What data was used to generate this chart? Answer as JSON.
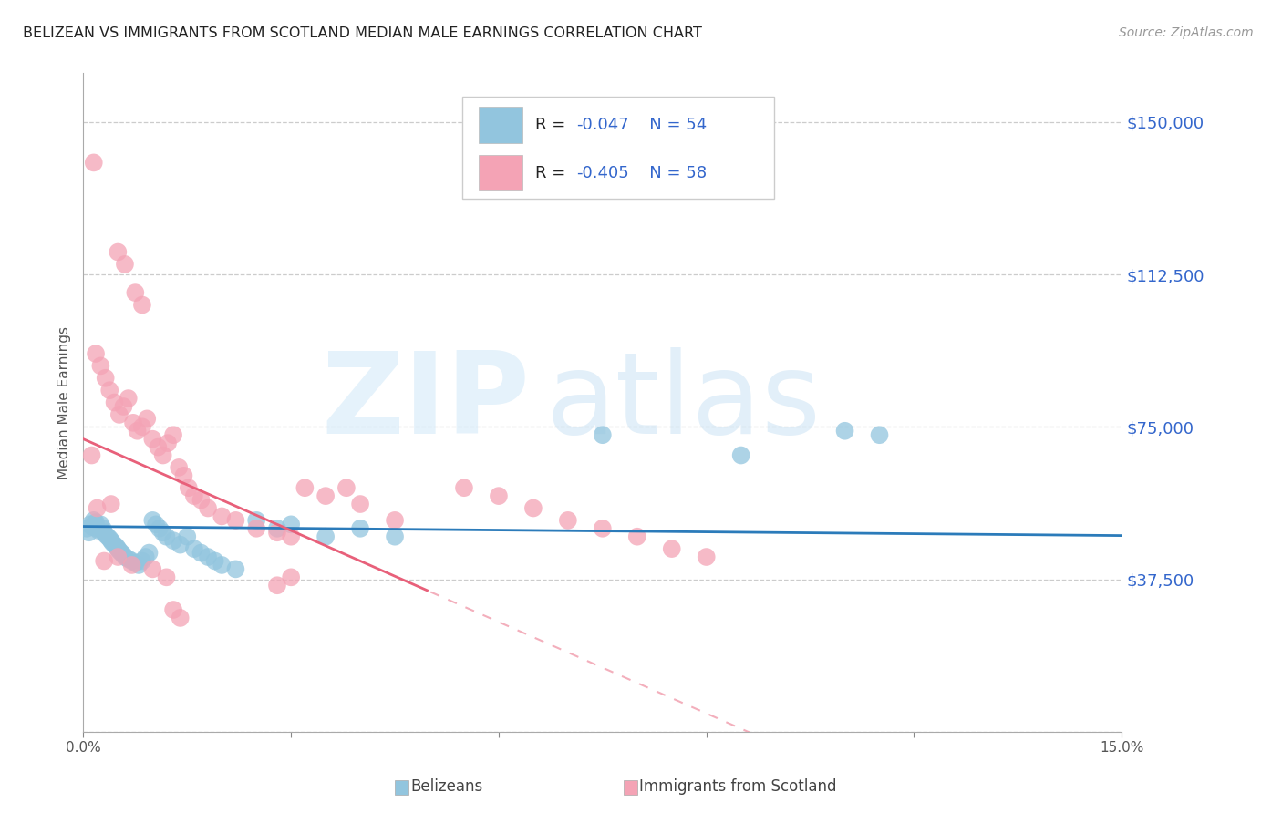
{
  "title": "BELIZEAN VS IMMIGRANTS FROM SCOTLAND MEDIAN MALE EARNINGS CORRELATION CHART",
  "source": "Source: ZipAtlas.com",
  "xlim": [
    0.0,
    15.0
  ],
  "ylim": [
    0,
    162000
  ],
  "ytick_positions": [
    0,
    37500,
    75000,
    112500,
    150000
  ],
  "ytick_labels": [
    "",
    "$37,500",
    "$75,000",
    "$112,500",
    "$150,000"
  ],
  "xtick_positions": [
    0,
    3,
    6,
    9,
    12,
    15
  ],
  "xtick_labels": [
    "0.0%",
    "",
    "",
    "",
    "",
    "15.0%"
  ],
  "ylabel": "Median Male Earnings",
  "blue_label": "Belizeans",
  "pink_label": "Immigrants from Scotland",
  "blue_R": -0.047,
  "blue_N": 54,
  "pink_R": -0.405,
  "pink_N": 58,
  "blue_color": "#92c5de",
  "pink_color": "#f4a3b5",
  "blue_line_color": "#2b7bba",
  "pink_line_color": "#e8607a",
  "tick_color": "#3366cc",
  "legend_text_color": "#3366cc",
  "blue_dots_x": [
    0.05,
    0.08,
    0.1,
    0.12,
    0.15,
    0.18,
    0.2,
    0.22,
    0.25,
    0.28,
    0.3,
    0.32,
    0.35,
    0.38,
    0.4,
    0.42,
    0.45,
    0.48,
    0.5,
    0.52,
    0.55,
    0.58,
    0.6,
    0.65,
    0.7,
    0.75,
    0.8,
    0.85,
    0.9,
    0.95,
    1.0,
    1.05,
    1.1,
    1.15,
    1.2,
    1.3,
    1.4,
    1.5,
    1.6,
    1.7,
    1.8,
    1.9,
    2.0,
    2.2,
    2.5,
    2.8,
    3.0,
    3.5,
    4.0,
    4.5,
    7.5,
    9.5,
    11.0,
    11.5
  ],
  "blue_dots_y": [
    50000,
    49000,
    51000,
    50500,
    52000,
    51500,
    50000,
    49500,
    51000,
    50000,
    49000,
    48500,
    48000,
    47500,
    47000,
    46500,
    46000,
    45500,
    45000,
    44500,
    44000,
    43500,
    43000,
    42500,
    42000,
    41500,
    41000,
    42000,
    43000,
    44000,
    52000,
    51000,
    50000,
    49000,
    48000,
    47000,
    46000,
    48000,
    45000,
    44000,
    43000,
    42000,
    41000,
    40000,
    52000,
    50000,
    51000,
    48000,
    50000,
    48000,
    73000,
    68000,
    74000,
    73000
  ],
  "pink_dots_x": [
    0.12,
    0.15,
    0.5,
    0.6,
    0.75,
    0.85,
    0.18,
    0.25,
    0.32,
    0.38,
    0.45,
    0.52,
    0.58,
    0.65,
    0.72,
    0.78,
    0.85,
    0.92,
    1.0,
    1.08,
    1.15,
    1.22,
    1.3,
    1.38,
    1.45,
    1.52,
    1.6,
    1.7,
    1.8,
    2.0,
    2.2,
    2.5,
    2.8,
    3.0,
    3.2,
    3.5,
    3.8,
    4.0,
    4.5,
    0.3,
    0.5,
    0.7,
    1.0,
    1.2,
    1.3,
    1.4,
    2.8,
    3.0,
    0.2,
    0.4,
    5.5,
    6.0,
    6.5,
    7.0,
    7.5,
    8.0,
    8.5,
    9.0
  ],
  "pink_dots_y": [
    68000,
    140000,
    118000,
    115000,
    108000,
    105000,
    93000,
    90000,
    87000,
    84000,
    81000,
    78000,
    80000,
    82000,
    76000,
    74000,
    75000,
    77000,
    72000,
    70000,
    68000,
    71000,
    73000,
    65000,
    63000,
    60000,
    58000,
    57000,
    55000,
    53000,
    52000,
    50000,
    49000,
    48000,
    60000,
    58000,
    60000,
    56000,
    52000,
    42000,
    43000,
    41000,
    40000,
    38000,
    30000,
    28000,
    36000,
    38000,
    55000,
    56000,
    60000,
    58000,
    55000,
    52000,
    50000,
    48000,
    45000,
    43000
  ]
}
